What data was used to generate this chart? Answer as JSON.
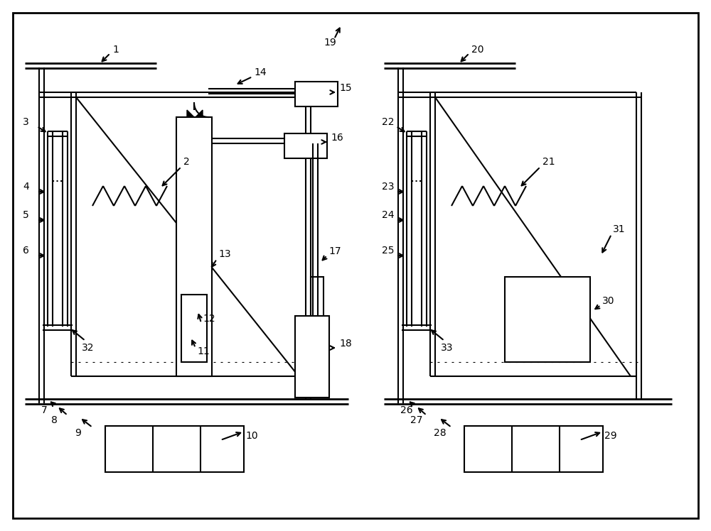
{
  "fig_width": 10.0,
  "fig_height": 7.48,
  "bg_color": "#ffffff",
  "line_color": "#000000"
}
